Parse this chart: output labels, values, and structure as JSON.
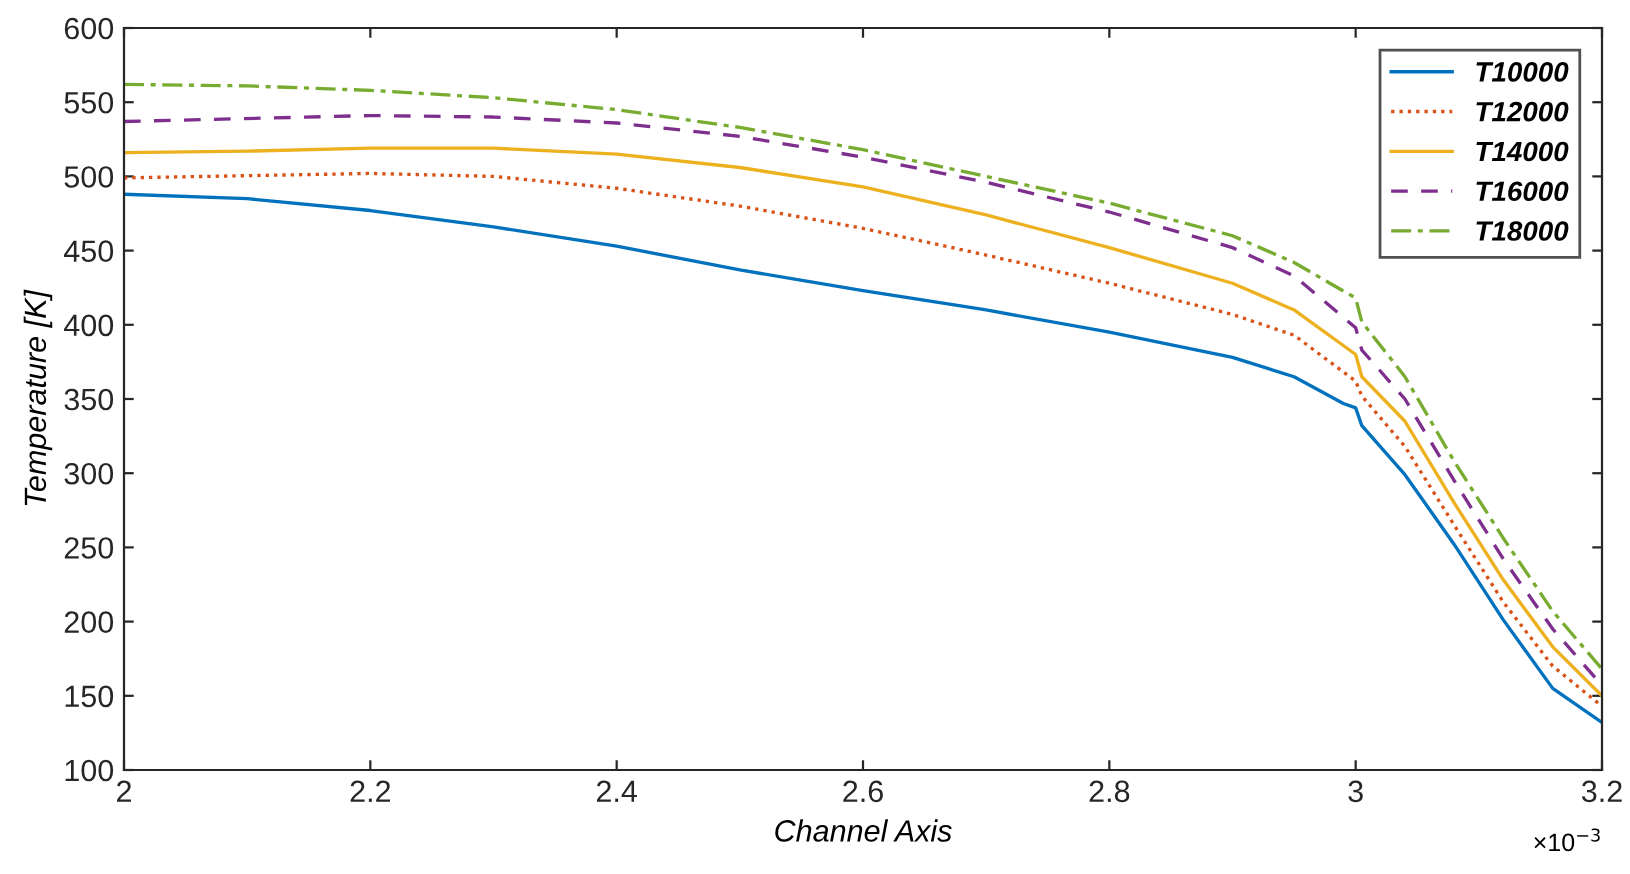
{
  "chart_data": {
    "type": "line",
    "xlabel": "Channel Axis",
    "ylabel": "Temperature [K]",
    "annotations": [
      "×10$^{−3}$"
    ],
    "xlim": [
      2,
      3.2
    ],
    "xticks": [
      2,
      2.2,
      2.4,
      2.6,
      2.8,
      3,
      3.2
    ],
    "ylim": [
      100,
      600
    ],
    "yticks": [
      100,
      150,
      200,
      250,
      300,
      350,
      400,
      450,
      500,
      550,
      600
    ],
    "grid": false,
    "legend": "top right",
    "series": [
      {
        "name": "T10000",
        "color": "#0072bd",
        "line_style": "solid",
        "x": [
          2,
          2.1,
          2.2,
          2.3,
          2.4,
          2.5,
          2.6,
          2.7,
          2.8,
          2.9,
          2.95,
          2.99,
          3,
          3.005,
          3.04,
          3.08,
          3.12,
          3.16,
          3.2
        ],
        "values": [
          488,
          485,
          477,
          466,
          453,
          437,
          423,
          410,
          395,
          378,
          365,
          347,
          344,
          332,
          299,
          252,
          201,
          155,
          132
        ]
      },
      {
        "name": "T12000",
        "color": "#d95319",
        "line_style": "dotted",
        "x": [
          2,
          2.2,
          2.3,
          2.4,
          2.5,
          2.6,
          2.7,
          2.8,
          2.9,
          2.95,
          3,
          3.005,
          3.04,
          3.08,
          3.12,
          3.16,
          3.2
        ],
        "values": [
          499,
          502,
          500,
          492,
          480,
          465,
          447,
          428,
          407,
          393,
          362,
          352,
          318,
          265,
          213,
          170,
          143
        ]
      },
      {
        "name": "T14000",
        "color": "#edb120",
        "line_style": "solid",
        "x": [
          2,
          2.1,
          2.2,
          2.3,
          2.4,
          2.5,
          2.6,
          2.7,
          2.8,
          2.9,
          2.95,
          3,
          3.005,
          3.04,
          3.08,
          3.12,
          3.16,
          3.2
        ],
        "values": [
          516,
          517,
          519,
          519,
          515,
          506,
          493,
          474,
          452,
          428,
          410,
          380,
          365,
          335,
          280,
          228,
          183,
          150
        ]
      },
      {
        "name": "T16000",
        "color": "#7e2f8e",
        "line_style": "dashed",
        "x": [
          2,
          2.2,
          2.3,
          2.4,
          2.5,
          2.6,
          2.7,
          2.8,
          2.9,
          2.95,
          3,
          3.005,
          3.04,
          3.08,
          3.12,
          3.16,
          3.2
        ],
        "values": [
          537,
          541,
          540,
          536,
          527,
          513,
          496,
          476,
          452,
          433,
          398,
          383,
          350,
          295,
          242,
          195,
          157
        ]
      },
      {
        "name": "T18000",
        "color": "#77ac30",
        "line_style": "dashdot",
        "x": [
          2,
          2.1,
          2.2,
          2.3,
          2.4,
          2.5,
          2.6,
          2.7,
          2.8,
          2.9,
          2.95,
          3,
          3.005,
          3.04,
          3.08,
          3.12,
          3.16,
          3.2
        ],
        "values": [
          562,
          561,
          558,
          553,
          545,
          533,
          518,
          500,
          482,
          460,
          442,
          418,
          402,
          365,
          308,
          256,
          207,
          168
        ]
      }
    ]
  }
}
